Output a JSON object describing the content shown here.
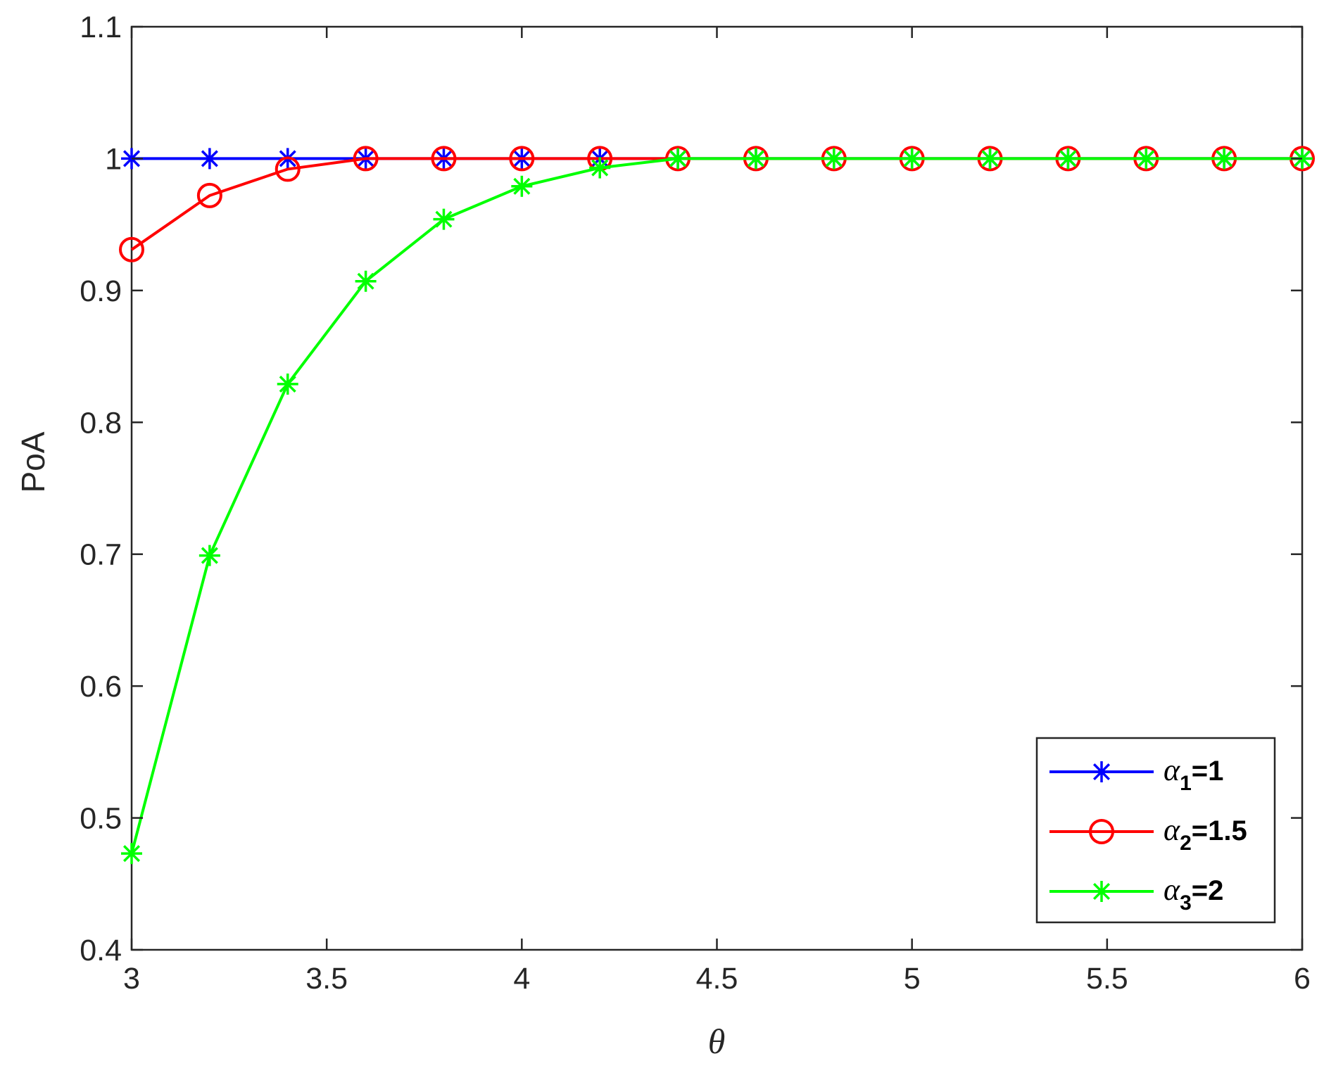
{
  "chart_data": {
    "type": "line",
    "xlabel": "θ",
    "ylabel": "PoA",
    "xlim": [
      3,
      6
    ],
    "ylim": [
      0.4,
      1.1
    ],
    "xticks": [
      3,
      3.5,
      4,
      4.5,
      5,
      5.5,
      6
    ],
    "xtick_labels": [
      "3",
      "3.5",
      "4",
      "4.5",
      "5",
      "5.5",
      "6"
    ],
    "yticks": [
      0.4,
      0.5,
      0.6,
      0.7,
      0.8,
      0.9,
      1.0,
      1.1
    ],
    "ytick_labels": [
      "0.4",
      "0.5",
      "0.6",
      "0.7",
      "0.8",
      "0.9",
      "1",
      "1.1"
    ],
    "grid": false,
    "legend_position": "bottom-right",
    "x": [
      3,
      3.2,
      3.4,
      3.6,
      3.8,
      4,
      4.2,
      4.4,
      4.6,
      4.8,
      5,
      5.2,
      5.4,
      5.6,
      5.8,
      6
    ],
    "series": [
      {
        "legend_symbol": "α",
        "legend_subscript": "1",
        "legend_value": "=1",
        "color": "#0000ff",
        "marker": "asterisk",
        "values": [
          1,
          1,
          1,
          1,
          1,
          1,
          1,
          1,
          1,
          1,
          1,
          1,
          1,
          1,
          1,
          1
        ]
      },
      {
        "legend_symbol": "α",
        "legend_subscript": "2",
        "legend_value": "=1.5",
        "color": "#ff0000",
        "marker": "circle",
        "values": [
          0.931,
          0.972,
          0.992,
          1,
          1,
          1,
          1,
          1,
          1,
          1,
          1,
          1,
          1,
          1,
          1,
          1
        ]
      },
      {
        "legend_symbol": "α",
        "legend_subscript": "3",
        "legend_value": "=2",
        "color": "#00ff00",
        "marker": "asterisk",
        "values": [
          0.473,
          0.699,
          0.829,
          0.907,
          0.954,
          0.979,
          0.993,
          1,
          1,
          1,
          1,
          1,
          1,
          1,
          1,
          1
        ]
      }
    ]
  }
}
